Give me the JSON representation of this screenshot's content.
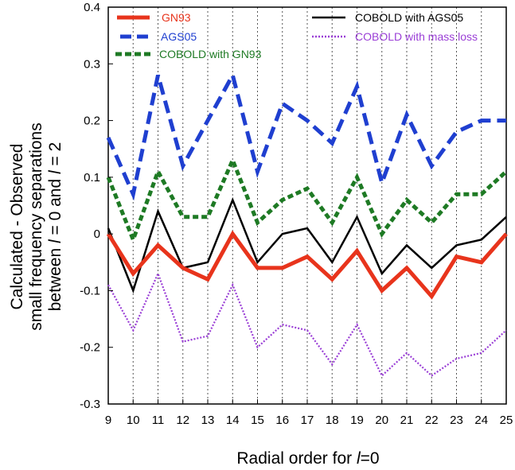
{
  "chart_data": {
    "type": "line",
    "title": "",
    "xlabel_prefix": "Radial order for ",
    "xlabel_ell": "l",
    "xlabel_suffix": "=0",
    "ylabel_lines": [
      "Calculated - Observed",
      "small frequency separations",
      "between l = 0 and l = 2"
    ],
    "ylabel_line3_parts": [
      "between ",
      "l",
      " = 0 and ",
      "l",
      " = 2"
    ],
    "x": [
      9,
      10,
      11,
      12,
      13,
      14,
      15,
      16,
      17,
      18,
      19,
      20,
      21,
      22,
      23,
      24,
      25
    ],
    "xlim": [
      9,
      25
    ],
    "ylim": [
      -0.3,
      0.4
    ],
    "yticks": [
      -0.3,
      -0.2,
      -0.1,
      0,
      0.1,
      0.2,
      0.3,
      0.4
    ],
    "ytick_labels": [
      "-0.3",
      "-0.2",
      "-0.1",
      "0",
      "0.1",
      "0.2",
      "0.3",
      "0.4"
    ],
    "grid": "vertical dotted",
    "legend_placement": "top",
    "series": [
      {
        "name": "GN93",
        "color": "#e8341c",
        "style": "solid-thick",
        "values": [
          0,
          -0.07,
          -0.02,
          -0.06,
          -0.08,
          0,
          -0.06,
          -0.06,
          -0.04,
          -0.08,
          -0.03,
          -0.1,
          -0.06,
          -0.11,
          -0.04,
          -0.05,
          0
        ]
      },
      {
        "name": "AGS05",
        "color": "#1f3fd0",
        "style": "dashed-thick",
        "values": [
          0.17,
          0.07,
          0.28,
          0.12,
          0.2,
          0.28,
          0.11,
          0.23,
          0.2,
          0.16,
          0.26,
          0.09,
          0.21,
          0.12,
          0.18,
          0.2,
          0.2
        ]
      },
      {
        "name": "COBOLD with GN93",
        "color": "#1e7a24",
        "style": "short-dashed-thick",
        "values": [
          0.1,
          -0.01,
          0.11,
          0.03,
          0.03,
          0.13,
          0.02,
          0.06,
          0.08,
          0.02,
          0.1,
          0,
          0.06,
          0.02,
          0.07,
          0.07,
          0.11
        ]
      },
      {
        "name": "COBOLD with AGS05",
        "color": "#000000",
        "style": "solid",
        "values": [
          0.01,
          -0.1,
          0.04,
          -0.06,
          -0.05,
          0.06,
          -0.05,
          0,
          0.01,
          -0.05,
          0.03,
          -0.07,
          -0.02,
          -0.06,
          -0.02,
          -0.01,
          0.03
        ]
      },
      {
        "name": "COBOLD with mass loss",
        "color": "#9a3ed6",
        "style": "dotted",
        "values": [
          -0.09,
          -0.17,
          -0.07,
          -0.19,
          -0.18,
          -0.09,
          -0.2,
          -0.16,
          -0.17,
          -0.23,
          -0.16,
          -0.25,
          -0.21,
          -0.25,
          -0.22,
          -0.21,
          -0.17
        ]
      }
    ]
  }
}
